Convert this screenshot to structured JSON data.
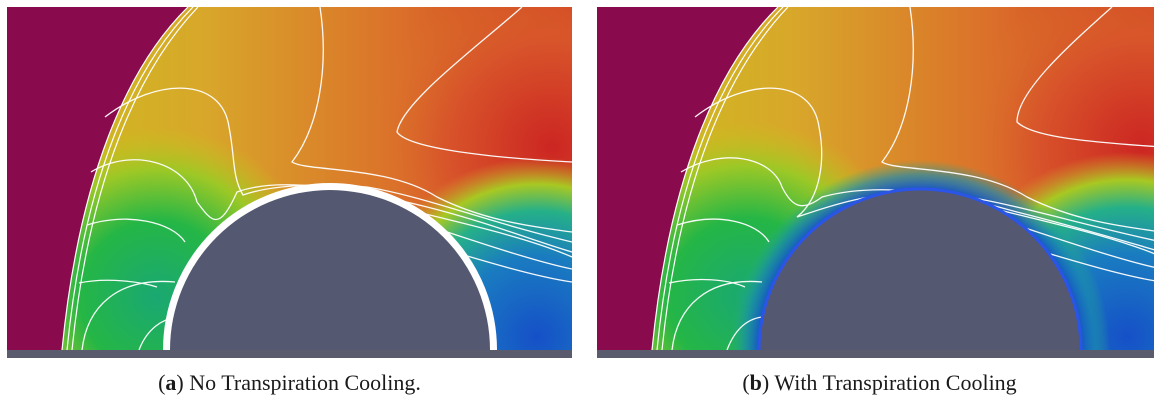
{
  "panels": [
    {
      "id": "a",
      "tag": "a",
      "caption": "No Transpiration Cooling.",
      "wall_stroke": "#ffffff"
    },
    {
      "id": "b",
      "tag": "b",
      "caption": "With Transpiration Cooling",
      "wall_stroke": "#2b55e6"
    }
  ],
  "colors": {
    "freestream": "#8a0b4d",
    "body": "#545870",
    "ground": "#5a5c6e",
    "contour_line": "#ffffff",
    "hot": "#cf2a22",
    "warm": "#dd7a2a",
    "mid": "#cdc11a",
    "cool": "#22b44a",
    "cold": "#1557c8"
  }
}
